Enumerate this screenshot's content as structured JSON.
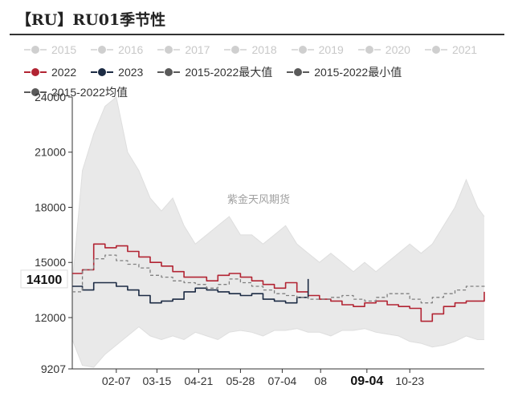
{
  "title": "【RU】RU01季节性",
  "watermark": "紫金天风期货",
  "current_value_label": "14100",
  "colors": {
    "s2022": "#b22433",
    "s2023": "#1c2b44",
    "range_fill": "#e9e9e9",
    "avg": "#808080",
    "axis": "#333333",
    "disabled": "#cfcfcf"
  },
  "legend": {
    "row1": [
      {
        "label": "2015",
        "color": "#cfcfcf",
        "active": false
      },
      {
        "label": "2016",
        "color": "#cfcfcf",
        "active": false
      },
      {
        "label": "2017",
        "color": "#cfcfcf",
        "active": false
      },
      {
        "label": "2018",
        "color": "#cfcfcf",
        "active": false
      },
      {
        "label": "2019",
        "color": "#cfcfcf",
        "active": false
      },
      {
        "label": "2020",
        "color": "#cfcfcf",
        "active": false
      },
      {
        "label": "2021",
        "color": "#cfcfcf",
        "active": false
      }
    ],
    "row2": [
      {
        "label": "2022",
        "color": "#b22433",
        "active": true
      },
      {
        "label": "2023",
        "color": "#1c2b44",
        "active": true
      },
      {
        "label": "2015-2022最大值",
        "color": "#5a5a5a",
        "active": true
      },
      {
        "label": "2015-2022最小值",
        "color": "#5a5a5a",
        "active": true
      }
    ],
    "row3": [
      {
        "label": "2015-2022均值",
        "color": "#5a5a5a",
        "active": true
      }
    ]
  },
  "chart_data": {
    "type": "line",
    "title": "【RU】RU01季节性",
    "y_ticks": [
      9207,
      12000,
      15000,
      18000,
      21000,
      24000
    ],
    "ylim": [
      9207,
      24000
    ],
    "x_ticks": [
      "02-07",
      "03-15",
      "04-21",
      "05-28",
      "07-04",
      "08",
      "09-04",
      "10-23"
    ],
    "x_tick_pos": [
      40,
      76,
      113,
      150,
      187,
      221,
      262,
      300
    ],
    "x_highlight": "09-04",
    "xlim": [
      1,
      366
    ],
    "current_value": 14100,
    "x": [
      1,
      10,
      20,
      30,
      40,
      50,
      60,
      70,
      80,
      90,
      100,
      110,
      120,
      130,
      140,
      150,
      160,
      170,
      180,
      190,
      200,
      210,
      220,
      230,
      240,
      250,
      260,
      270,
      280,
      290,
      300,
      310,
      320,
      330,
      340,
      350,
      360,
      366
    ],
    "max_series": [
      13800,
      20000,
      22000,
      23500,
      24000,
      21000,
      20000,
      18500,
      17800,
      18500,
      17000,
      16000,
      16500,
      17000,
      17500,
      16500,
      16500,
      16000,
      16500,
      17000,
      16000,
      15500,
      15000,
      15500,
      15000,
      14500,
      15000,
      14500,
      15000,
      15500,
      16000,
      15500,
      16000,
      17000,
      18000,
      19500,
      18000,
      17500
    ],
    "min_series": [
      10800,
      9400,
      9300,
      10000,
      10500,
      11000,
      11500,
      11000,
      10800,
      11000,
      10800,
      11200,
      11000,
      10800,
      11200,
      11300,
      11200,
      11000,
      11300,
      11300,
      11400,
      11200,
      11200,
      11000,
      11300,
      11300,
      11400,
      11200,
      11100,
      11000,
      10700,
      10600,
      10400,
      10500,
      10700,
      11000,
      10800,
      10800
    ],
    "series": [
      {
        "name": "2022",
        "values": [
          14400,
          14600,
          16000,
          15800,
          15900,
          15600,
          15300,
          15000,
          14800,
          14500,
          14200,
          14200,
          14000,
          14300,
          14400,
          14200,
          14000,
          13800,
          13600,
          13900,
          13400,
          13200,
          13000,
          12900,
          12700,
          12600,
          12800,
          12900,
          12700,
          12600,
          12500,
          11800,
          12200,
          12600,
          12800,
          12900,
          12900,
          13400
        ]
      },
      {
        "name": "2023",
        "values": [
          13700,
          13500,
          13900,
          13900,
          13700,
          13500,
          13200,
          12800,
          12900,
          13000,
          13400,
          13600,
          13500,
          13400,
          13300,
          13200,
          13300,
          13000,
          12900,
          12800,
          13100,
          14100,
          null,
          null,
          null,
          null,
          null,
          null,
          null,
          null,
          null,
          null,
          null,
          null,
          null,
          null,
          null,
          null
        ]
      },
      {
        "name": "2015-2022均值",
        "values": [
          13400,
          14600,
          15200,
          15400,
          15100,
          14900,
          14700,
          14300,
          14200,
          14000,
          13900,
          13800,
          13600,
          13800,
          14100,
          13900,
          13700,
          13500,
          13300,
          13200,
          13100,
          13000,
          13000,
          13100,
          13200,
          13000,
          12900,
          13100,
          13300,
          13300,
          13000,
          12800,
          13100,
          13300,
          13500,
          13700,
          13700,
          13600
        ]
      }
    ]
  }
}
